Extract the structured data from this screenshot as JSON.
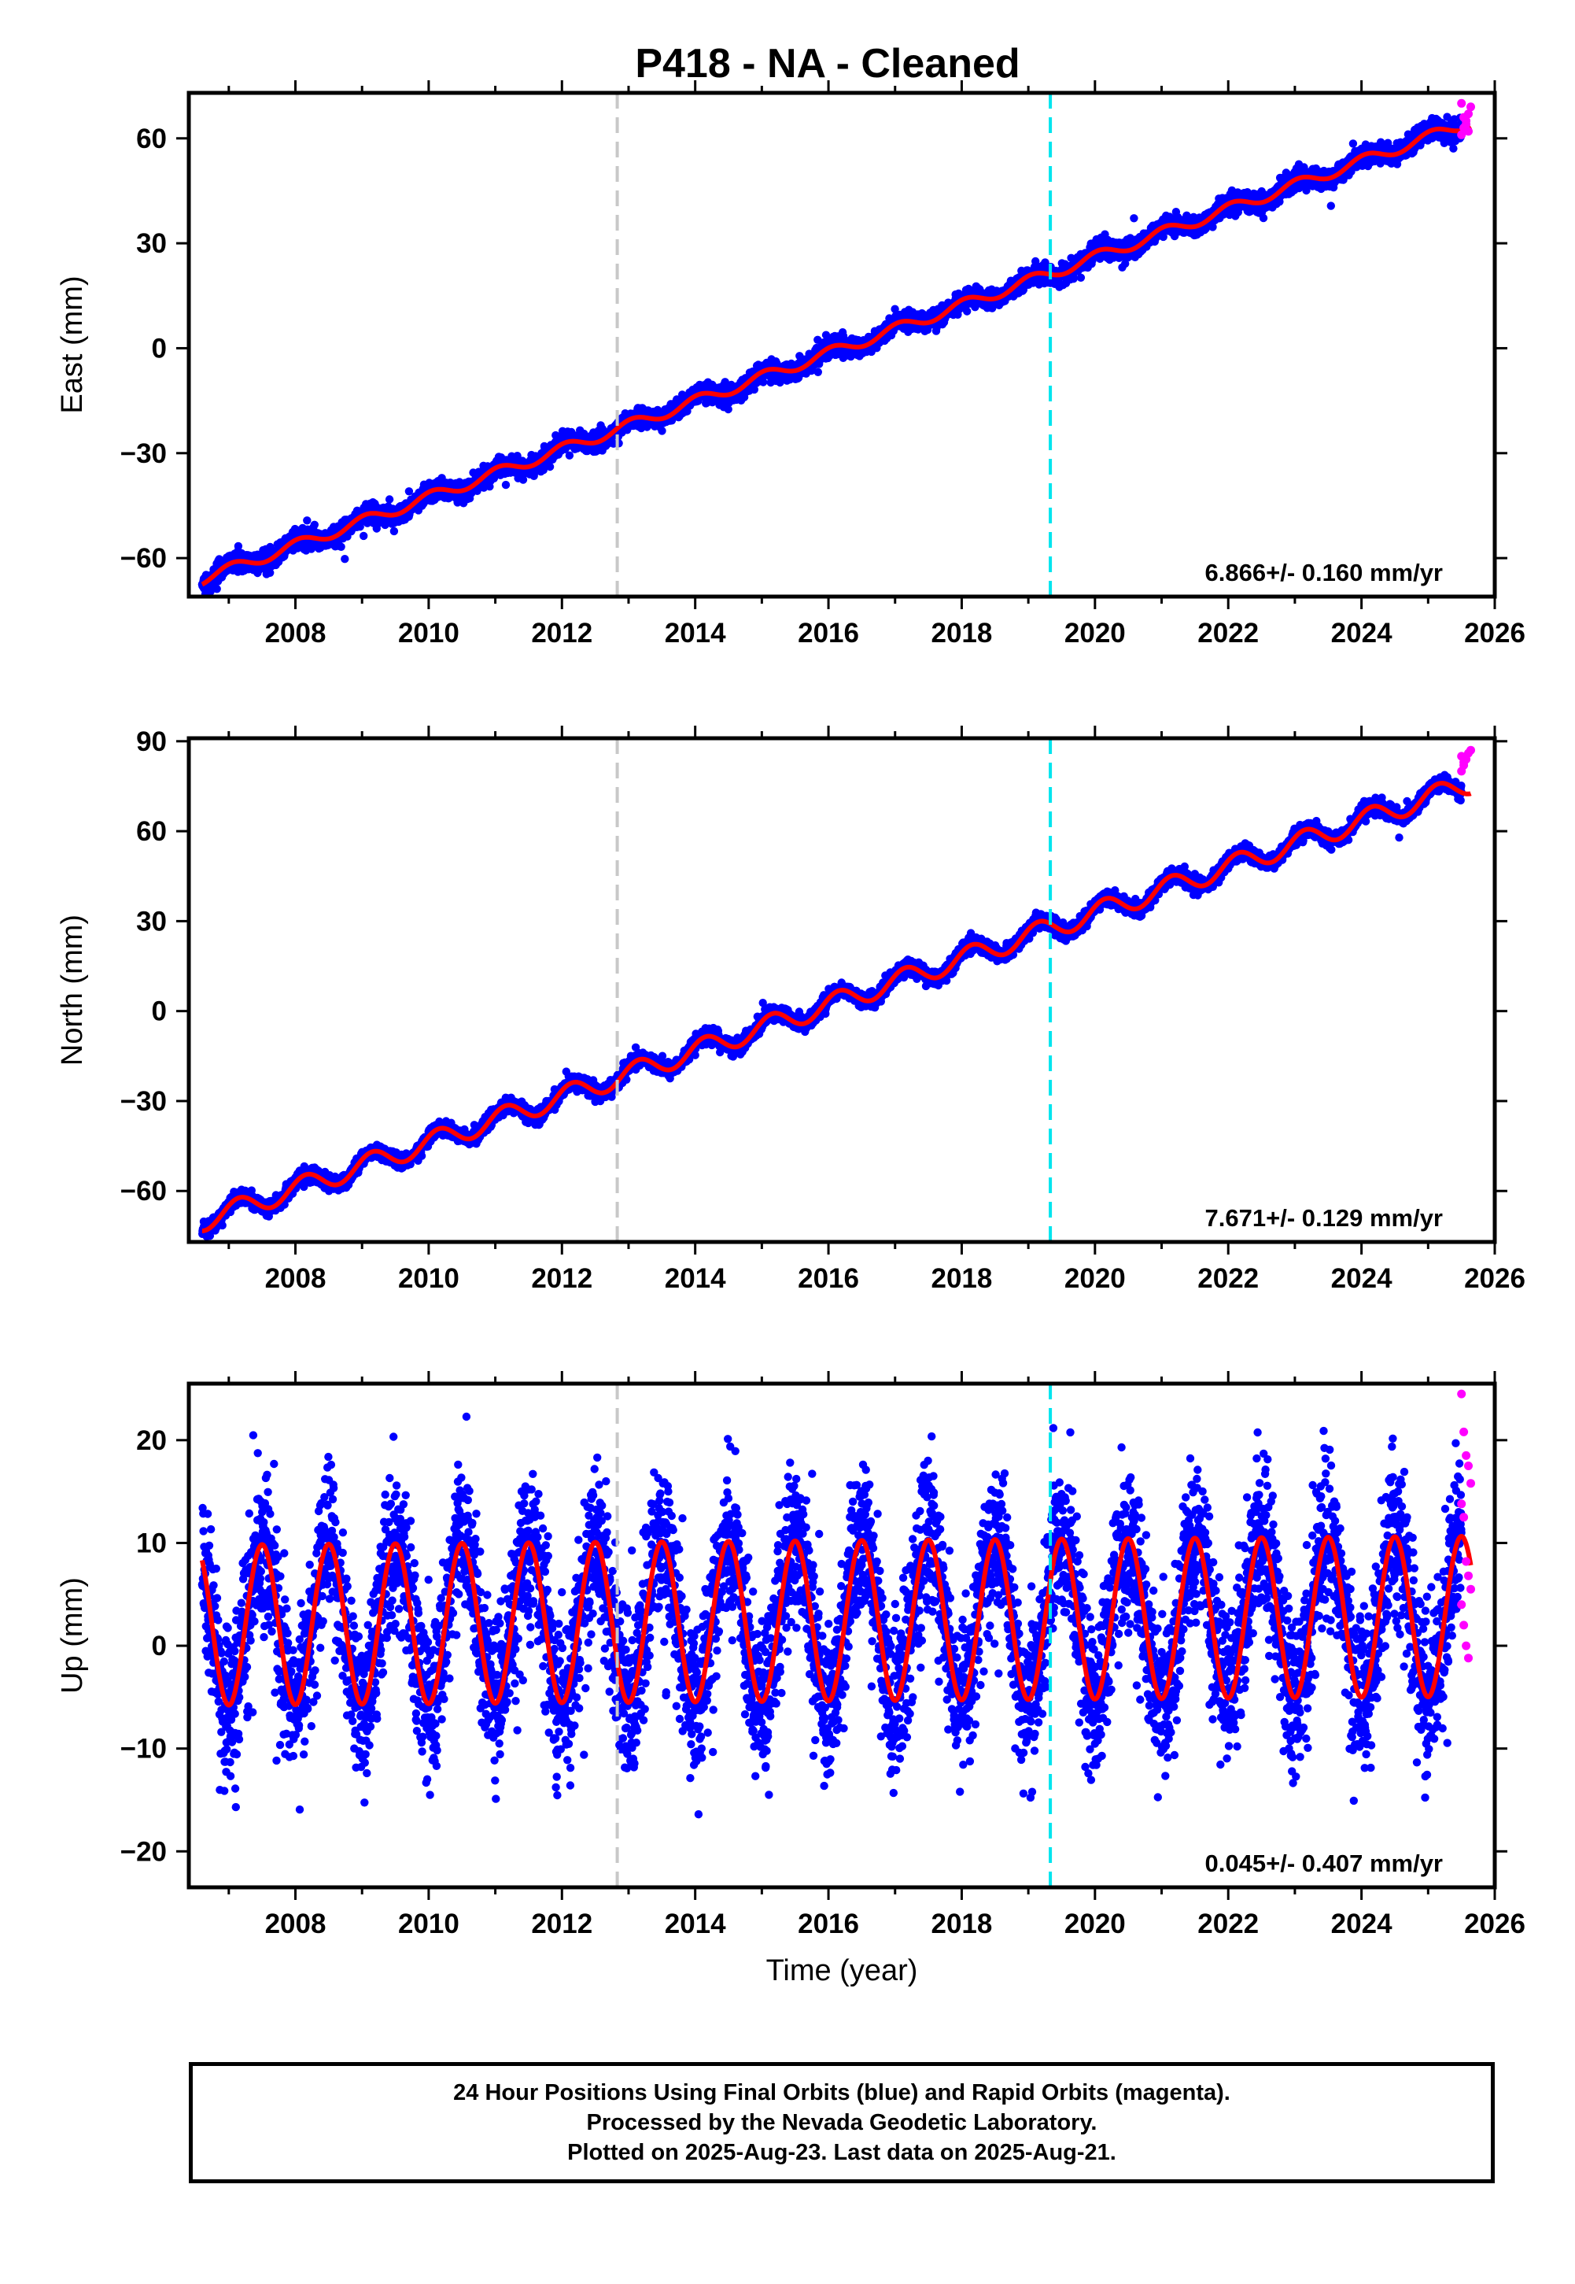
{
  "chart_data": {
    "type": "scatter",
    "title": "P418  - NA - Cleaned",
    "x_axis": {
      "label": "Time (year)",
      "range": [
        2006.4,
        2026.0
      ],
      "ticks": [
        2008,
        2010,
        2012,
        2014,
        2016,
        2018,
        2020,
        2022,
        2024,
        2026
      ],
      "tick_labels": [
        "2008",
        "2010",
        "2012",
        "2014",
        "2016",
        "2018",
        "2020",
        "2022",
        "2024",
        "2026"
      ]
    },
    "vertical_lines": [
      {
        "x": 2012.83,
        "color": "#c8c8c8",
        "style": "dashed"
      },
      {
        "x": 2019.33,
        "color": "#00e5ee",
        "style": "dashed"
      }
    ],
    "colors": {
      "final_orbits": "#0000ff",
      "rapid_orbits": "#ff00ff",
      "model": "#ff0000"
    },
    "panels": [
      {
        "component": "east",
        "ylabel": "East (mm)",
        "ylim": [
          -71,
          73
        ],
        "yticks": [
          -60,
          -30,
          0,
          30,
          60
        ],
        "ytick_labels": [
          "−60",
          "−30",
          "0",
          "30",
          "60"
        ],
        "rate_label": "6.866+/- 0.160 mm/yr",
        "model": {
          "start": 2006.6,
          "end": 2025.64,
          "value_at_start": -66.0,
          "rate": 6.866,
          "annual_amplitude": 1.6,
          "annual_phase": 0.8,
          "noise": 1.3,
          "rapid_from": 2025.5,
          "rapid_values": [
            61,
            63,
            65,
            67,
            69,
            70,
            66,
            64,
            62
          ]
        }
      },
      {
        "component": "north",
        "ylabel": "North (mm)",
        "ylim": [
          -77,
          91
        ],
        "yticks": [
          -60,
          -30,
          0,
          30,
          60,
          90
        ],
        "ytick_labels": [
          "−60",
          "−30",
          "0",
          "30",
          "60",
          "90"
        ],
        "rate_label": "7.671+/- 0.129 mm/yr",
        "model": {
          "start": 2006.6,
          "end": 2025.64,
          "value_at_start": -70.0,
          "rate": 7.671,
          "annual_amplitude": 3.5,
          "annual_phase": 1.9,
          "noise": 1.2,
          "rapid_from": 2025.5,
          "rapid_values": [
            80,
            82,
            84,
            86,
            87,
            85,
            83
          ]
        }
      },
      {
        "component": "up",
        "ylabel": "Up (mm)",
        "ylim": [
          -23.5,
          25.5
        ],
        "yticks": [
          -20,
          -10,
          0,
          10,
          20
        ],
        "ytick_labels": [
          "−20",
          "−10",
          "0",
          "10",
          "20"
        ],
        "rate_label": "0.045+/- 0.407 mm/yr",
        "model": {
          "start": 2006.6,
          "end": 2025.64,
          "value_at_start": 2.0,
          "rate": 0.045,
          "annual_amplitude": 7.8,
          "annual_phase": 0.25,
          "noise": 3.8,
          "rapid_from": 2025.5,
          "rapid_values": [
            24.5,
            20.8,
            18.5,
            17.5,
            15.8,
            13.8,
            12.5,
            8.2,
            6.8,
            5.5,
            4.0,
            2.0,
            0.0,
            -1.2
          ]
        }
      }
    ]
  },
  "footer": {
    "line1": "24 Hour Positions Using Final Orbits (blue) and Rapid Orbits (magenta).",
    "line2": "Processed by the Nevada Geodetic Laboratory.",
    "line3": "Plotted on 2025-Aug-23. Last data on 2025-Aug-21."
  }
}
